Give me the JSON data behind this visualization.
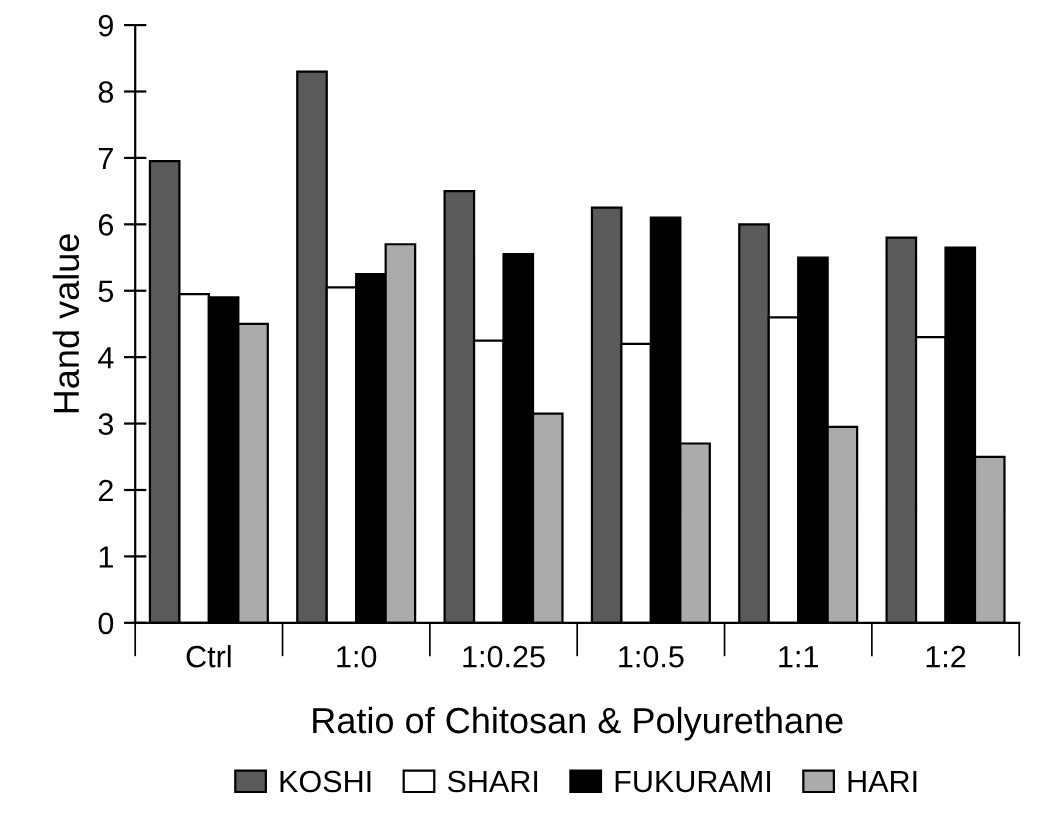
{
  "chart_data": {
    "type": "bar",
    "xlabel": "Ratio of Chitosan & Polyurethane",
    "ylabel": "Hand value",
    "categories": [
      "Ctrl",
      "1:0",
      "1:0.25",
      "1:0.5",
      "1:1",
      "1:2"
    ],
    "series": [
      {
        "name": "KOSHI",
        "color": "#5a5a5a",
        "values": [
          6.95,
          8.3,
          6.5,
          6.25,
          6.0,
          5.8
        ]
      },
      {
        "name": "SHARI",
        "color": "#ffffff",
        "values": [
          4.95,
          5.05,
          4.25,
          4.2,
          4.6,
          4.3
        ]
      },
      {
        "name": "FUKURAMI",
        "color": "#000000",
        "values": [
          4.9,
          5.25,
          5.55,
          6.1,
          5.5,
          5.65
        ]
      },
      {
        "name": "HARI",
        "color": "#ababab",
        "values": [
          4.5,
          5.7,
          3.15,
          2.7,
          2.95,
          2.5
        ]
      }
    ],
    "ylim": [
      0,
      9
    ],
    "yticks": [
      0,
      1,
      2,
      3,
      4,
      5,
      6,
      7,
      8,
      9
    ],
    "grid": false,
    "legend": "bottom"
  }
}
